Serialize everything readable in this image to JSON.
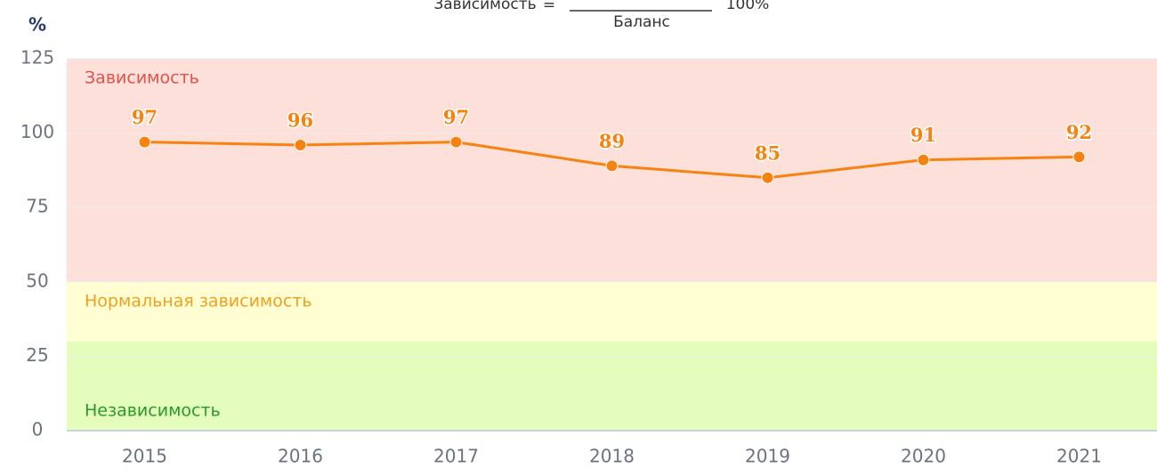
{
  "chart_data": {
    "type": "line",
    "formula": {
      "left": "Зависимость",
      "equals": "=",
      "denominator": "Баланс",
      "multiplier": "100%"
    },
    "y_unit": "%",
    "categories": [
      "2015",
      "2016",
      "2017",
      "2018",
      "2019",
      "2020",
      "2021"
    ],
    "series": [
      {
        "name": "Зависимость",
        "color": "#f7820f",
        "values": [
          97,
          96,
          97,
          89,
          85,
          91,
          92
        ]
      }
    ],
    "bands": [
      {
        "label": "Зависимость",
        "from": 50,
        "to": 125,
        "color": "#fde0d9",
        "text_color": "#e0524a"
      },
      {
        "label": "Нормальная зависимость",
        "from": 30,
        "to": 50,
        "color": "#fefed2",
        "text_color": "#f0a020"
      },
      {
        "label": "Независимость",
        "from": 0,
        "to": 30,
        "color": "#e4fdbc",
        "text_color": "#2a9a2a"
      }
    ],
    "ylim": [
      0,
      125
    ],
    "yticks": [
      0,
      25,
      50,
      75,
      100,
      125
    ],
    "grid": true
  }
}
